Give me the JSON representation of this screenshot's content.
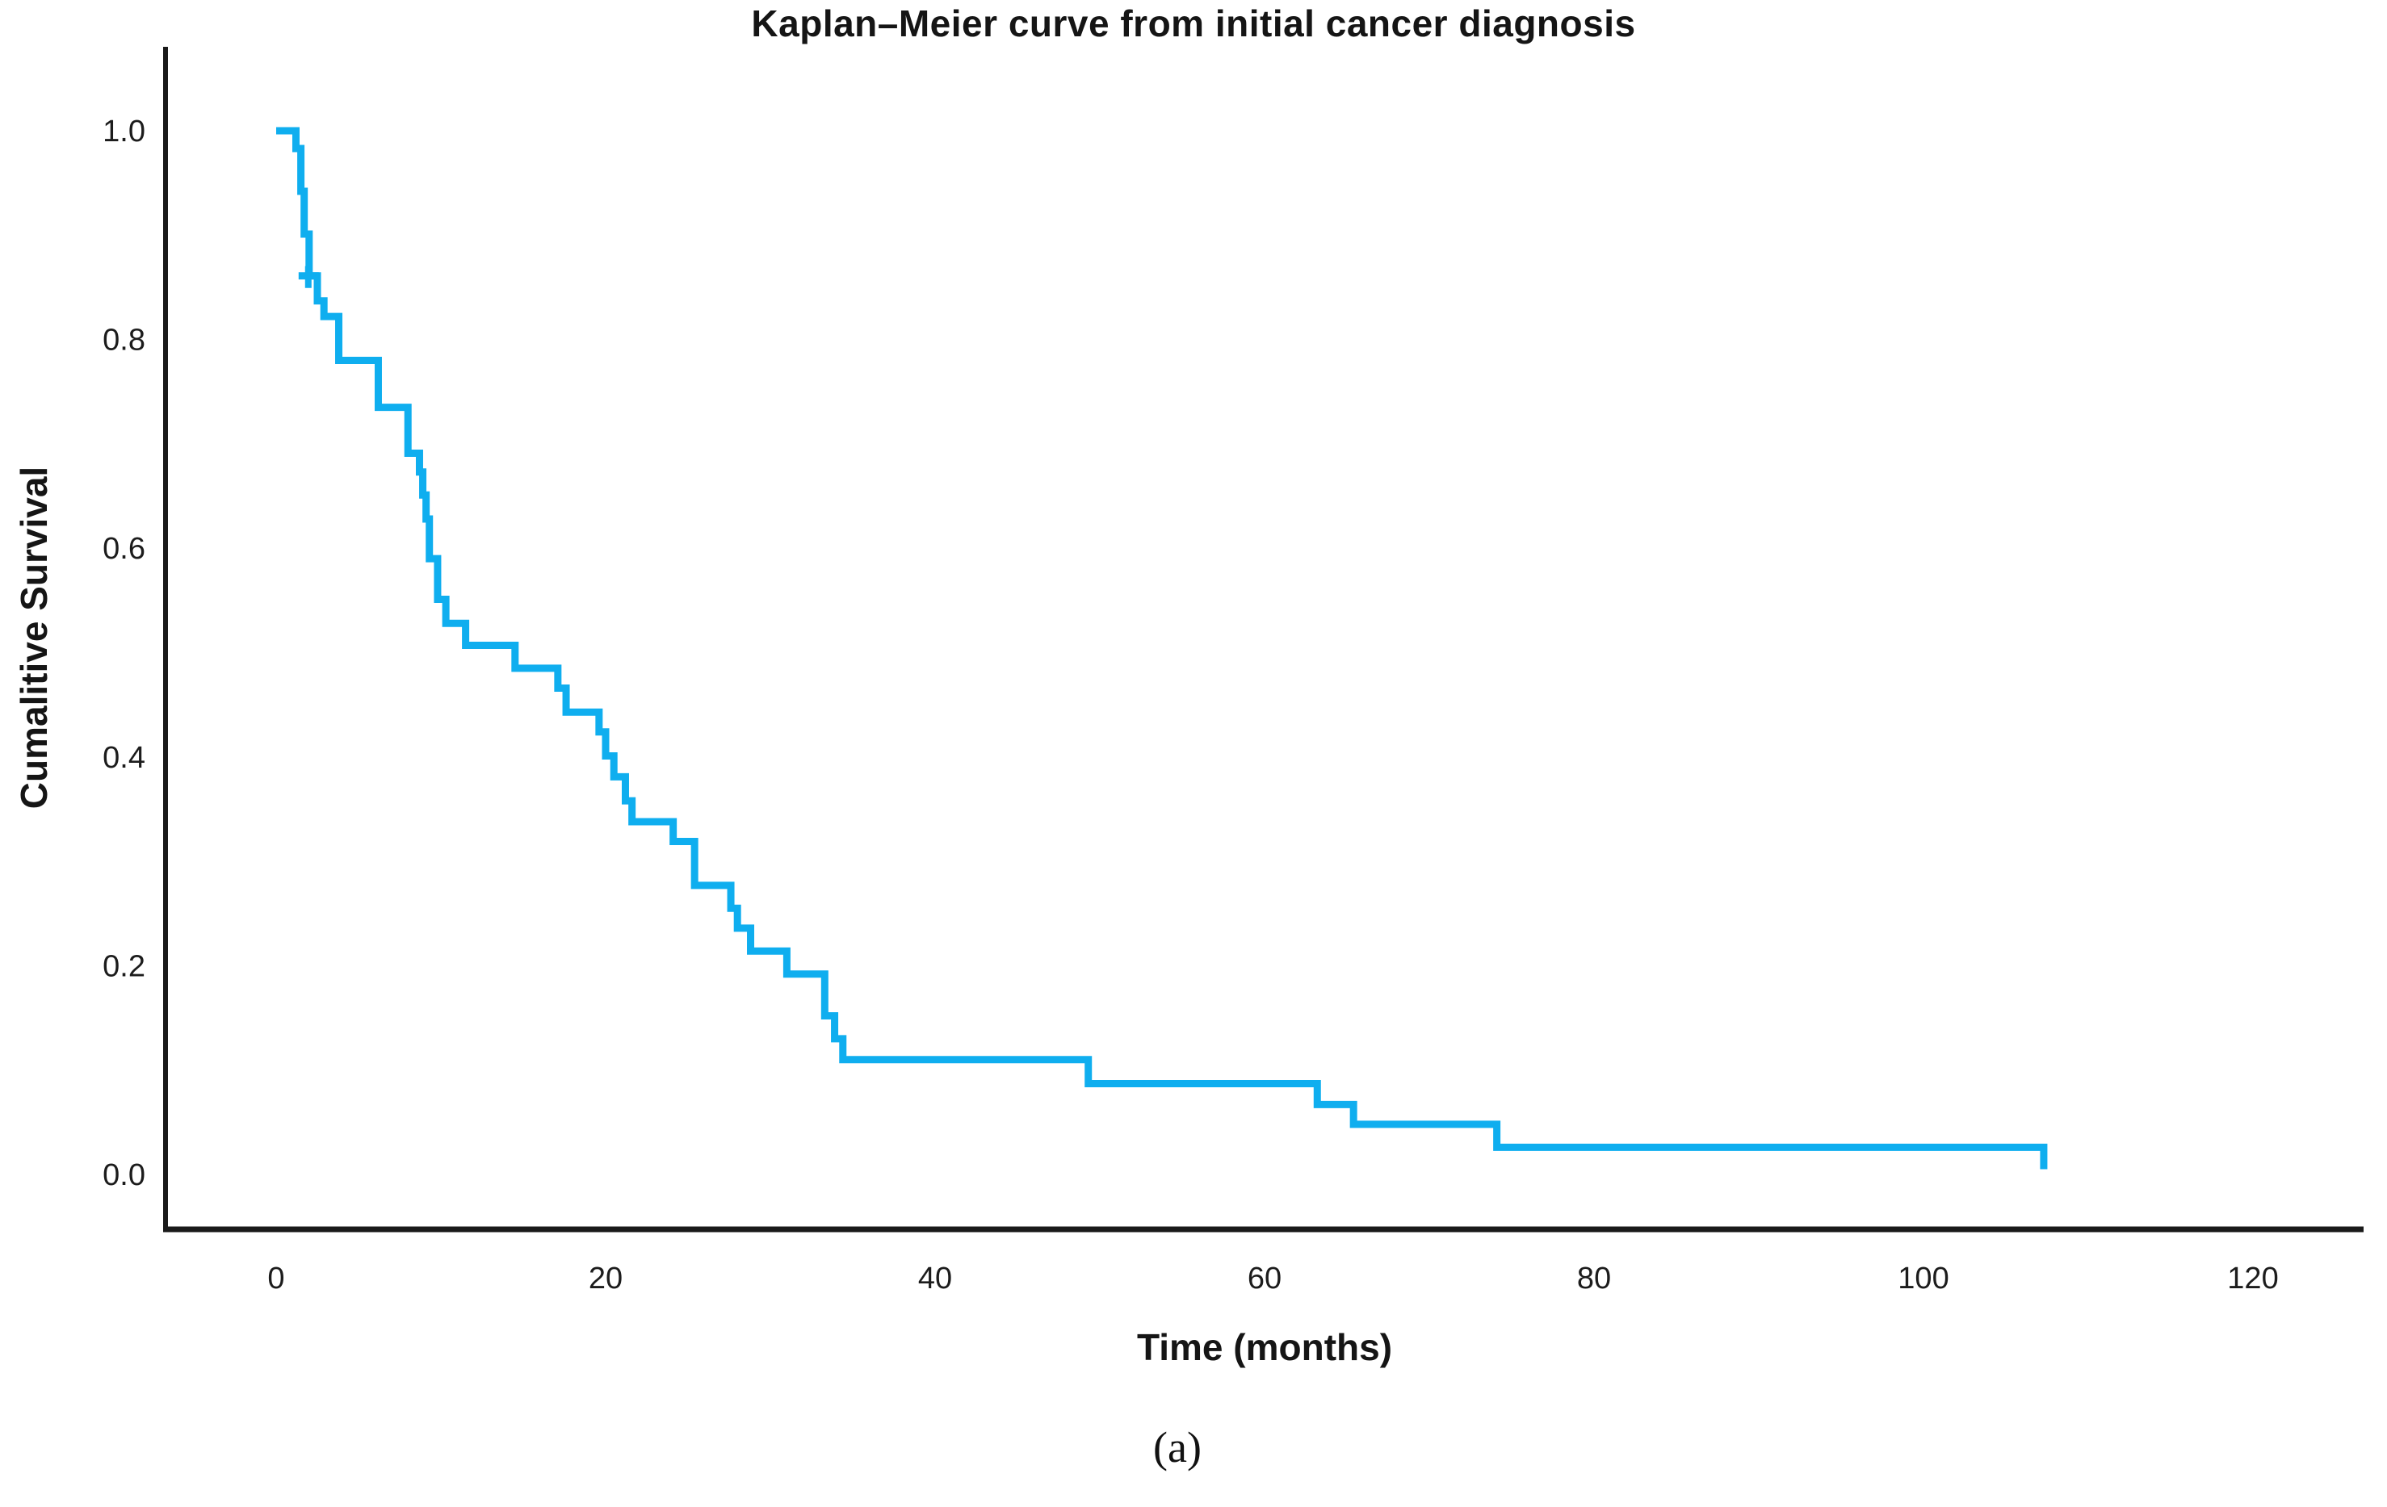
{
  "chart_data": {
    "type": "line",
    "subtype": "kaplan-meier-step-function",
    "title": "Kaplan–Meier curve from initial cancer diagnosis",
    "xlabel": "Time (months)",
    "ylabel": "Cumalitive Survival",
    "caption": "(a)",
    "xlim": [
      0,
      120
    ],
    "ylim": [
      0.0,
      1.0
    ],
    "xticks": [
      0,
      20,
      40,
      60,
      80,
      100,
      120
    ],
    "yticks": [
      1.0,
      0.8,
      0.6,
      0.4,
      0.2,
      0.0
    ],
    "grid": false,
    "legend": "none",
    "line_color": "#0FAEEF",
    "axis_color": "#1a1a1a",
    "steps": [
      [
        0.0,
        1.0
      ],
      [
        1.2,
        0.983
      ],
      [
        1.5,
        0.942
      ],
      [
        1.7,
        0.901
      ],
      [
        2.0,
        0.861
      ],
      [
        2.5,
        0.837
      ],
      [
        2.9,
        0.822
      ],
      [
        3.8,
        0.78
      ],
      [
        6.2,
        0.735
      ],
      [
        8.0,
        0.691
      ],
      [
        8.7,
        0.673
      ],
      [
        8.9,
        0.651
      ],
      [
        9.1,
        0.628
      ],
      [
        9.3,
        0.59
      ],
      [
        9.8,
        0.551
      ],
      [
        10.3,
        0.528
      ],
      [
        11.5,
        0.507
      ],
      [
        14.5,
        0.485
      ],
      [
        17.1,
        0.466
      ],
      [
        17.6,
        0.443
      ],
      [
        19.6,
        0.424
      ],
      [
        20.0,
        0.401
      ],
      [
        20.5,
        0.381
      ],
      [
        21.2,
        0.358
      ],
      [
        21.6,
        0.338
      ],
      [
        24.1,
        0.319
      ],
      [
        25.4,
        0.277
      ],
      [
        27.6,
        0.255
      ],
      [
        28.0,
        0.236
      ],
      [
        28.8,
        0.214
      ],
      [
        31.0,
        0.192
      ],
      [
        33.3,
        0.152
      ],
      [
        33.9,
        0.13
      ],
      [
        34.4,
        0.11
      ],
      [
        49.3,
        0.087
      ],
      [
        63.2,
        0.067
      ],
      [
        65.4,
        0.048
      ],
      [
        74.1,
        0.026
      ],
      [
        107.3,
        0.005
      ]
    ],
    "censor_marks": [
      {
        "t": 1.95,
        "s": 0.861
      }
    ]
  }
}
